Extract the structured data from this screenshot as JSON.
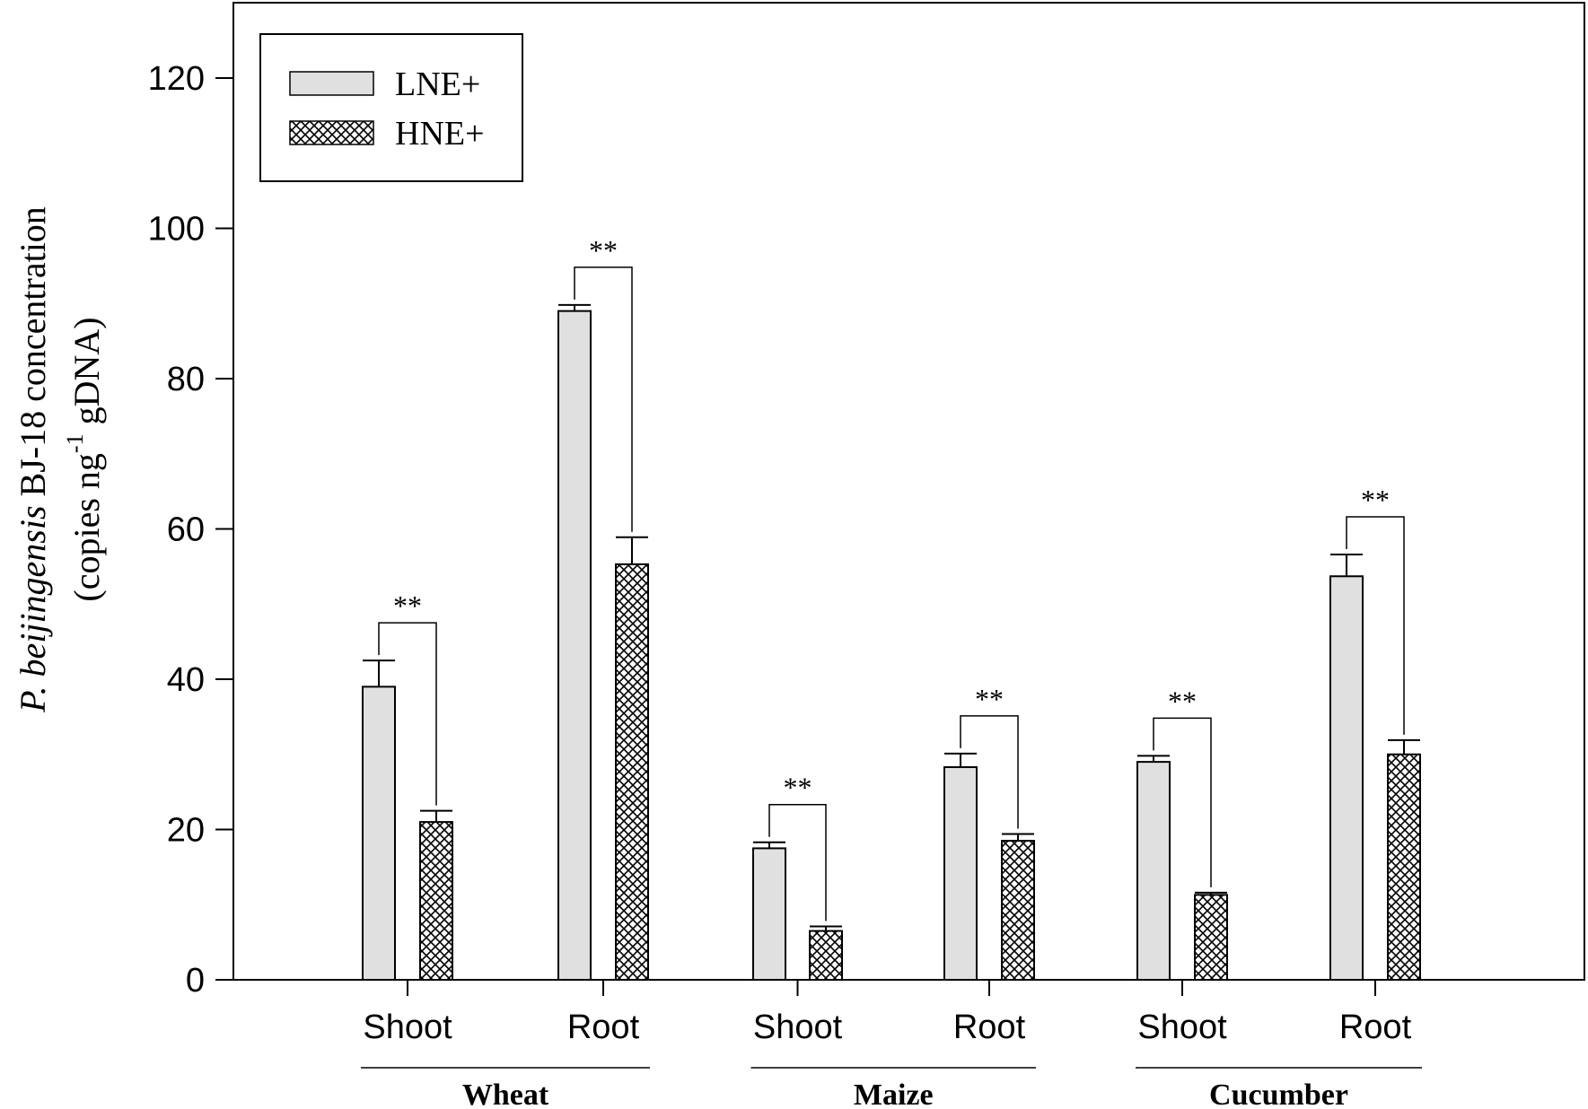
{
  "chart_data": {
    "type": "bar",
    "ylabel_line1": {
      "italic": "P. beijingensis",
      "rest": " BJ-18 concentration"
    },
    "ylabel_line2": {
      "pre": "(copies ng",
      "sup": "-1",
      "post": " gDNA)"
    },
    "ylim": [
      0,
      130
    ],
    "yticks": [
      0,
      20,
      40,
      60,
      80,
      100,
      120
    ],
    "categories": [
      "Shoot",
      "Root",
      "Shoot",
      "Root",
      "Shoot",
      "Root"
    ],
    "groups": [
      {
        "label": "Wheat",
        "categories": [
          0,
          1
        ]
      },
      {
        "label": "Maize",
        "categories": [
          2,
          3
        ]
      },
      {
        "label": "Cucumber",
        "categories": [
          4,
          5
        ]
      }
    ],
    "series": [
      {
        "name": "LNE+",
        "values": [
          39,
          89,
          17.5,
          28.3,
          29,
          53.7
        ],
        "errors": [
          3.5,
          0.8,
          0.8,
          1.8,
          0.8,
          2.9
        ],
        "fill": "#e0e0e0",
        "pattern": "solid"
      },
      {
        "name": "HNE+",
        "values": [
          21,
          55.3,
          6.5,
          18.5,
          11.3,
          30
        ],
        "errors": [
          1.5,
          3.6,
          0.6,
          0.9,
          0.3,
          1.9
        ],
        "fill": "#ffffff",
        "pattern": "crosshatch"
      }
    ],
    "significance": [
      "**",
      "**",
      "**",
      "**",
      "**",
      "**"
    ],
    "legend": {
      "placement": "top-left"
    },
    "grid": false
  }
}
